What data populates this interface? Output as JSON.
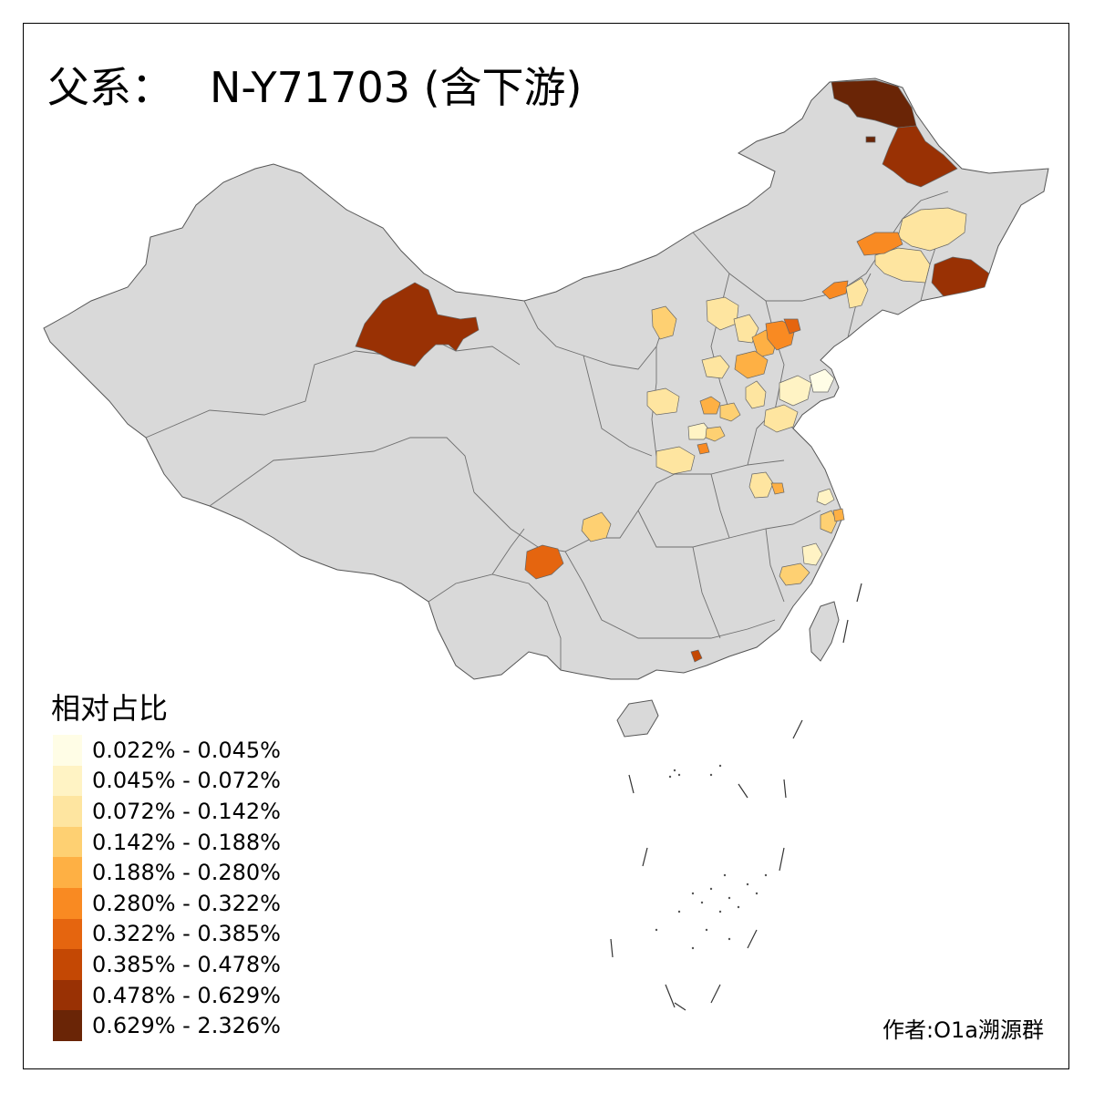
{
  "title": {
    "prefix": "父系：",
    "haplogroup": "N-Y71703 (含下游)"
  },
  "legend": {
    "title": "相对占比",
    "bins": [
      {
        "label": "0.022% - 0.045%",
        "color": "#fffde6"
      },
      {
        "label": "0.045% - 0.072%",
        "color": "#fff3c4"
      },
      {
        "label": "0.072% - 0.142%",
        "color": "#fee5a0"
      },
      {
        "label": "0.142% - 0.188%",
        "color": "#fed072"
      },
      {
        "label": "0.188% - 0.280%",
        "color": "#feb044"
      },
      {
        "label": "0.280% - 0.322%",
        "color": "#f98a22"
      },
      {
        "label": "0.322% - 0.385%",
        "color": "#e5650f"
      },
      {
        "label": "0.385% - 0.478%",
        "color": "#c44804"
      },
      {
        "label": "0.478% - 0.629%",
        "color": "#993104"
      },
      {
        "label": "0.629% - 2.326%",
        "color": "#6a2506"
      }
    ]
  },
  "credit": "作者:O1a溯源群",
  "colors": {
    "no_data": "#d9d9d9",
    "border": "#555555"
  }
}
